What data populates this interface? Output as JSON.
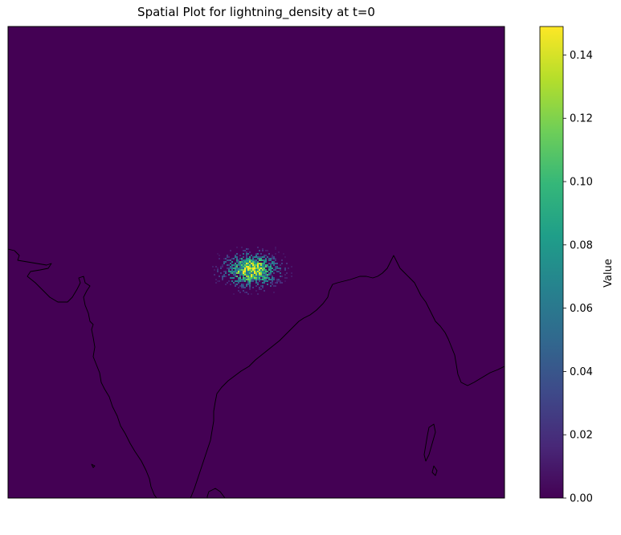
{
  "chart_data": {
    "type": "heatmap",
    "title": "Spatial Plot for lightning_density at t=0",
    "xlabel": "",
    "ylabel": "",
    "colorbar": {
      "label": "Value",
      "colormap": "viridis",
      "range": [
        0.0,
        0.149
      ],
      "ticks": [
        0.0,
        0.02,
        0.04,
        0.06,
        0.08,
        0.1,
        0.12,
        0.14
      ],
      "tick_labels": [
        "0.00",
        "0.02",
        "0.04",
        "0.06",
        "0.08",
        "0.10",
        "0.12",
        "0.14"
      ]
    },
    "background_value": 0.0,
    "hotspot": {
      "description": "single noisy elliptical cluster of high lightning density over northern India",
      "peak_value": 0.149
    },
    "basemap": "coastlines (Indian subcontinent)",
    "grid": false,
    "axis_ticks": false
  },
  "colors": {
    "background_field": "#440154",
    "coastline": "#000000",
    "viridis_stops": [
      "#440154",
      "#482878",
      "#3e4989",
      "#31688e",
      "#26828e",
      "#1f9e89",
      "#35b779",
      "#6ece58",
      "#b5de2b",
      "#fde725"
    ]
  }
}
